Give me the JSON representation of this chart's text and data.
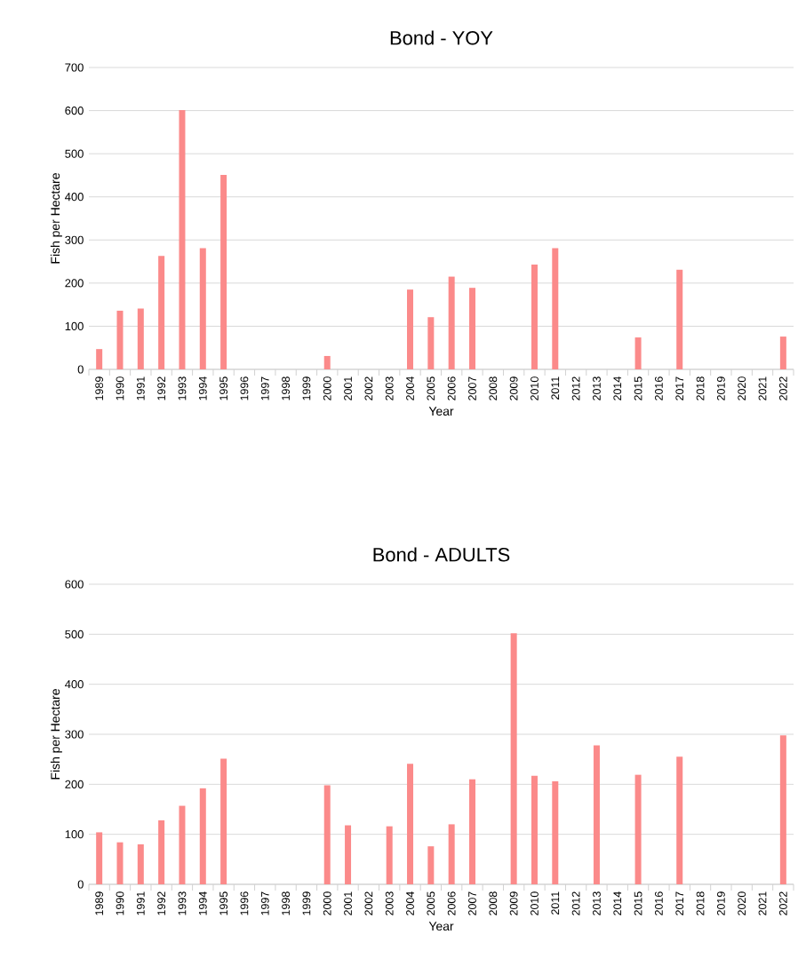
{
  "chart_data": [
    {
      "type": "bar",
      "title": "Bond - YOY",
      "xlabel": "Year",
      "ylabel": "Fish per Hectare",
      "categories": [
        "1989",
        "1990",
        "1991",
        "1992",
        "1993",
        "1994",
        "1995",
        "1996",
        "1997",
        "1998",
        "1999",
        "2000",
        "2001",
        "2002",
        "2003",
        "2004",
        "2005",
        "2006",
        "2007",
        "2008",
        "2009",
        "2010",
        "2011",
        "2012",
        "2013",
        "2014",
        "2015",
        "2016",
        "2017",
        "2018",
        "2019",
        "2020",
        "2021",
        "2022"
      ],
      "values": [
        47,
        136,
        141,
        263,
        601,
        281,
        451,
        null,
        null,
        null,
        null,
        31,
        null,
        null,
        null,
        185,
        121,
        215,
        189,
        null,
        null,
        243,
        281,
        null,
        null,
        null,
        74,
        null,
        231,
        null,
        null,
        null,
        null,
        76
      ],
      "color": "#fb8a8a",
      "ylim": [
        0,
        700
      ],
      "yticks": [
        0,
        100,
        200,
        300,
        400,
        500,
        600,
        700
      ],
      "grid": "y"
    },
    {
      "type": "bar",
      "title": "Bond - ADULTS",
      "xlabel": "Year",
      "ylabel": "Fish per Hectare",
      "categories": [
        "1989",
        "1990",
        "1991",
        "1992",
        "1993",
        "1994",
        "1995",
        "1996",
        "1997",
        "1998",
        "1999",
        "2000",
        "2001",
        "2002",
        "2003",
        "2004",
        "2005",
        "2006",
        "2007",
        "2008",
        "2009",
        "2010",
        "2011",
        "2012",
        "2013",
        "2014",
        "2015",
        "2016",
        "2017",
        "2018",
        "2019",
        "2020",
        "2021",
        "2022"
      ],
      "values": [
        104,
        84,
        80,
        128,
        157,
        192,
        251,
        null,
        null,
        null,
        null,
        198,
        118,
        null,
        116,
        241,
        76,
        120,
        210,
        null,
        502,
        217,
        206,
        null,
        278,
        null,
        219,
        null,
        255,
        null,
        null,
        null,
        null,
        298
      ],
      "color": "#fb8a8a",
      "ylim": [
        0,
        600
      ],
      "yticks": [
        0,
        100,
        200,
        300,
        400,
        500,
        600
      ],
      "grid": "y"
    }
  ]
}
